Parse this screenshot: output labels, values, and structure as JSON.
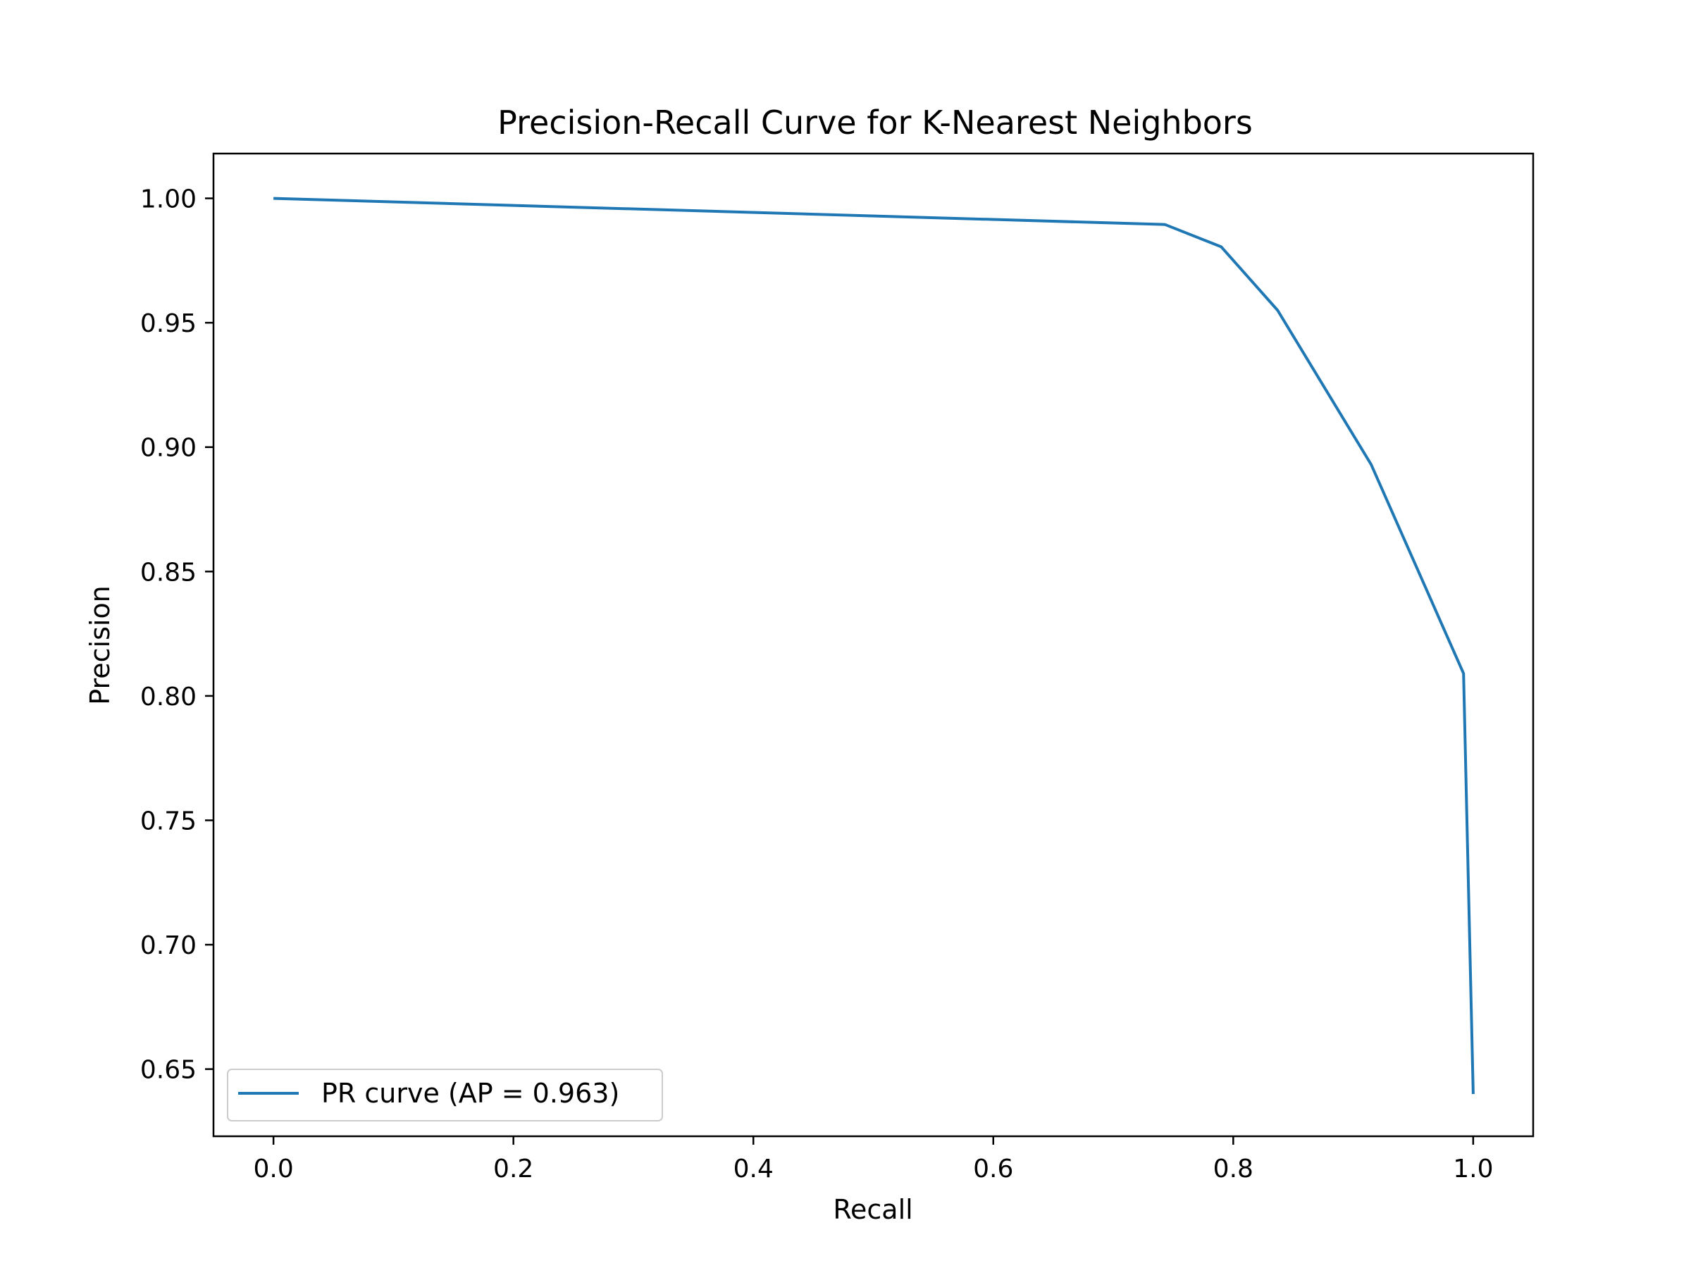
{
  "chart_data": {
    "type": "line",
    "title": "Precision-Recall Curve for K-Nearest Neighbors",
    "xlabel": "Recall",
    "ylabel": "Precision",
    "xlim": [
      -0.05,
      1.05
    ],
    "ylim": [
      0.623,
      1.018
    ],
    "xticks": [
      0.0,
      0.2,
      0.4,
      0.6,
      0.8,
      1.0
    ],
    "xtick_labels": [
      "0.0",
      "0.2",
      "0.4",
      "0.6",
      "0.8",
      "1.0"
    ],
    "yticks": [
      0.65,
      0.7,
      0.75,
      0.8,
      0.85,
      0.9,
      0.95,
      1.0
    ],
    "ytick_labels": [
      "0.65",
      "0.70",
      "0.75",
      "0.80",
      "0.85",
      "0.90",
      "0.95",
      "1.00"
    ],
    "grid": false,
    "legend_position": "lower-left",
    "series": [
      {
        "name": "PR curve (AP = 0.963)",
        "color": "#1f77b4",
        "x": [
          0.0,
          0.743,
          0.79,
          0.837,
          0.915,
          0.992,
          1.0
        ],
        "y": [
          1.0,
          0.9895,
          0.9805,
          0.955,
          0.893,
          0.809,
          0.64
        ]
      }
    ]
  }
}
